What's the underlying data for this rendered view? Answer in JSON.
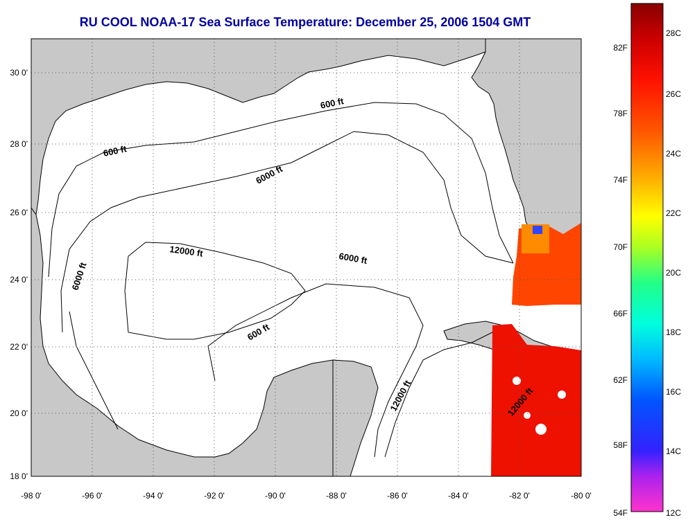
{
  "title": "RU COOL  NOAA-17  Sea Surface Temperature:  December 25, 2006 1504 GMT",
  "map": {
    "lon_range": [
      -98,
      -80
    ],
    "lat_range": [
      18,
      31
    ],
    "x_tick_labels": [
      "-98 0'",
      "-96 0'",
      "-94 0'",
      "-92 0'",
      "-90 0'",
      "-88 0'",
      "-86 0'",
      "-84 0'",
      "-82 0'",
      "-80 0'"
    ],
    "y_tick_labels": [
      "18 0'",
      "20 0'",
      "22 0'",
      "24 0'",
      "26 0'",
      "28 0'",
      "30 0'"
    ],
    "colors": {
      "land": "#c8c8c8",
      "water": "#ffffff",
      "grid": "#555555"
    },
    "depth_contour_labels": [
      {
        "text": "600 ft"
      },
      {
        "text": "600 ft"
      },
      {
        "text": "600 ft"
      },
      {
        "text": "6000 ft"
      },
      {
        "text": "6000 ft"
      },
      {
        "text": "6000 ft"
      },
      {
        "text": "12000 ft"
      },
      {
        "text": "12000 ft"
      },
      {
        "text": "12000 ft"
      }
    ]
  },
  "colorbar": {
    "fahrenheit_labels": [
      "82F",
      "78F",
      "74F",
      "70F",
      "66F",
      "62F",
      "58F",
      "54F"
    ],
    "celsius_labels": [
      "28C",
      "26C",
      "24C",
      "22C",
      "20C",
      "18C",
      "16C",
      "14C",
      "12C"
    ],
    "range_c": [
      12,
      29.5
    ],
    "gradient": [
      "#ff33cc",
      "#aa22ee",
      "#3322ff",
      "#0055ff",
      "#00bbff",
      "#00ffdd",
      "#22ff88",
      "#aaff22",
      "#ffff00",
      "#ffaa00",
      "#ff5500",
      "#ff1100",
      "#cc0000",
      "#880000"
    ]
  }
}
